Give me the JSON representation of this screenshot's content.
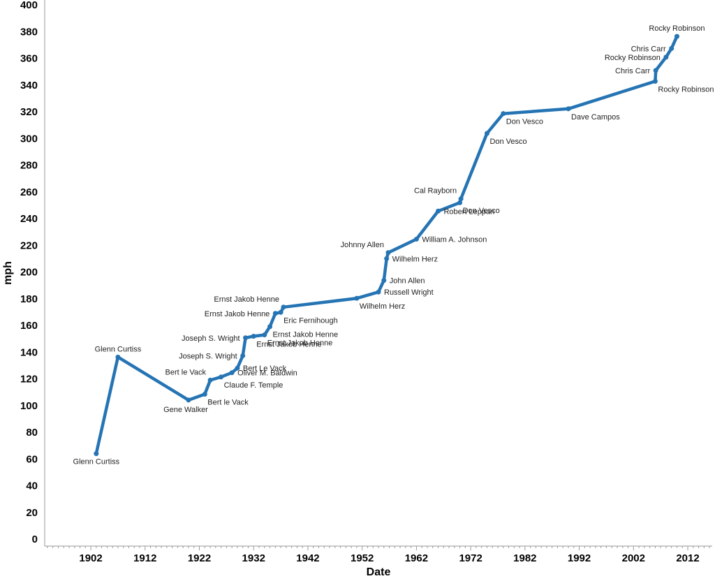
{
  "chart_data": {
    "type": "line",
    "title": "",
    "xlabel": "Date",
    "ylabel": "mph",
    "xlim": [
      1893.5,
      2016.5
    ],
    "ylim": [
      0,
      400
    ],
    "x_ticks": [
      "1902",
      "1912",
      "1922",
      "1932",
      "1942",
      "1952",
      "1962",
      "1972",
      "1982",
      "1992",
      "2002",
      "2012"
    ],
    "y_ticks": [
      "0",
      "20",
      "40",
      "60",
      "80",
      "100",
      "120",
      "140",
      "160",
      "180",
      "200",
      "220",
      "240",
      "260",
      "280",
      "300",
      "320",
      "340",
      "360",
      "380",
      "400"
    ],
    "grid": false,
    "legend": "none",
    "line_color": "#2574b4",
    "series": [
      {
        "points": [
          {
            "x": 1903.0,
            "y": 64,
            "label": "Glenn Curtiss",
            "pos": "below"
          },
          {
            "x": 1907.0,
            "y": 136.3,
            "label": "Glenn Curtiss",
            "pos": "above"
          },
          {
            "x": 1920.0,
            "y": 104.1,
            "label": "Gene Walker",
            "pos": "below-left"
          },
          {
            "x": 1923.0,
            "y": 108.5,
            "label": "Bert le Vack",
            "pos": "below-right"
          },
          {
            "x": 1924.0,
            "y": 119,
            "label": "Bert le Vack",
            "pos": "above-left"
          },
          {
            "x": 1926.0,
            "y": 121.4,
            "label": "Claude F. Temple",
            "pos": "below-right"
          },
          {
            "x": 1928.0,
            "y": 124.6,
            "label": "Oliver M. Baldwin",
            "pos": "right"
          },
          {
            "x": 1929.0,
            "y": 128,
            "label": "Bert Le Vack",
            "pos": "right"
          },
          {
            "x": 1930.0,
            "y": 137.3,
            "label": "Joseph S. Wright",
            "pos": "left"
          },
          {
            "x": 1930.5,
            "y": 150.7,
            "label": "Joseph S. Wright",
            "pos": "left"
          },
          {
            "x": 1932.0,
            "y": 151.9,
            "label": "Ernst Jakob Henne",
            "pos": "below-right"
          },
          {
            "x": 1934.0,
            "y": 152.9,
            "label": "Ernst Jakob Henne",
            "pos": "below-right"
          },
          {
            "x": 1935.0,
            "y": 159.1,
            "label": "Ernst Jakob Henne",
            "pos": "below-right"
          },
          {
            "x": 1936.0,
            "y": 169,
            "label": "Ernst Jakob Henne",
            "pos": "left"
          },
          {
            "x": 1937.0,
            "y": 169.8,
            "label": "Eric Fernihough",
            "pos": "below-right"
          },
          {
            "x": 1937.5,
            "y": 173.7,
            "label": "Ernst Jakob Henne",
            "pos": "above-left"
          },
          {
            "x": 1951.0,
            "y": 180.3,
            "label": "Wilhelm Herz",
            "pos": "below-right"
          },
          {
            "x": 1955.0,
            "y": 185,
            "label": "Russell Wright",
            "pos": "right"
          },
          {
            "x": 1956.0,
            "y": 193.7,
            "label": "John Allen",
            "pos": "right"
          },
          {
            "x": 1956.5,
            "y": 210,
            "label": "Wilhelm Herz",
            "pos": "right"
          },
          {
            "x": 1956.8,
            "y": 214.5,
            "label": "Johnny Allen",
            "pos": "above-left"
          },
          {
            "x": 1962.0,
            "y": 224.6,
            "label": "William A. Johnson",
            "pos": "right"
          },
          {
            "x": 1966.0,
            "y": 245.6,
            "label": "Robert Leppan",
            "pos": "right"
          },
          {
            "x": 1970.0,
            "y": 251.9,
            "label": "Don Vesco",
            "pos": "below-right"
          },
          {
            "x": 1970.2,
            "y": 254.8,
            "label": "Cal Rayborn",
            "pos": "above-left"
          },
          {
            "x": 1975.0,
            "y": 303.8,
            "label": "Don Vesco",
            "pos": "below-right"
          },
          {
            "x": 1978.0,
            "y": 318.6,
            "label": "Don Vesco",
            "pos": "below-right"
          },
          {
            "x": 1990.0,
            "y": 322.2,
            "label": "Dave Campos",
            "pos": "below-right"
          },
          {
            "x": 2006.0,
            "y": 342.8,
            "label": "Rocky Robinson",
            "pos": "below-right"
          },
          {
            "x": 2006.1,
            "y": 350.9,
            "label": "Chris Carr",
            "pos": "left"
          },
          {
            "x": 2008.0,
            "y": 360.9,
            "label": "Rocky Robinson",
            "pos": "left"
          },
          {
            "x": 2009.0,
            "y": 367.4,
            "label": "Chris Carr",
            "pos": "left"
          },
          {
            "x": 2010.0,
            "y": 376.4,
            "label": "Rocky Robinson",
            "pos": "above"
          }
        ]
      }
    ]
  }
}
